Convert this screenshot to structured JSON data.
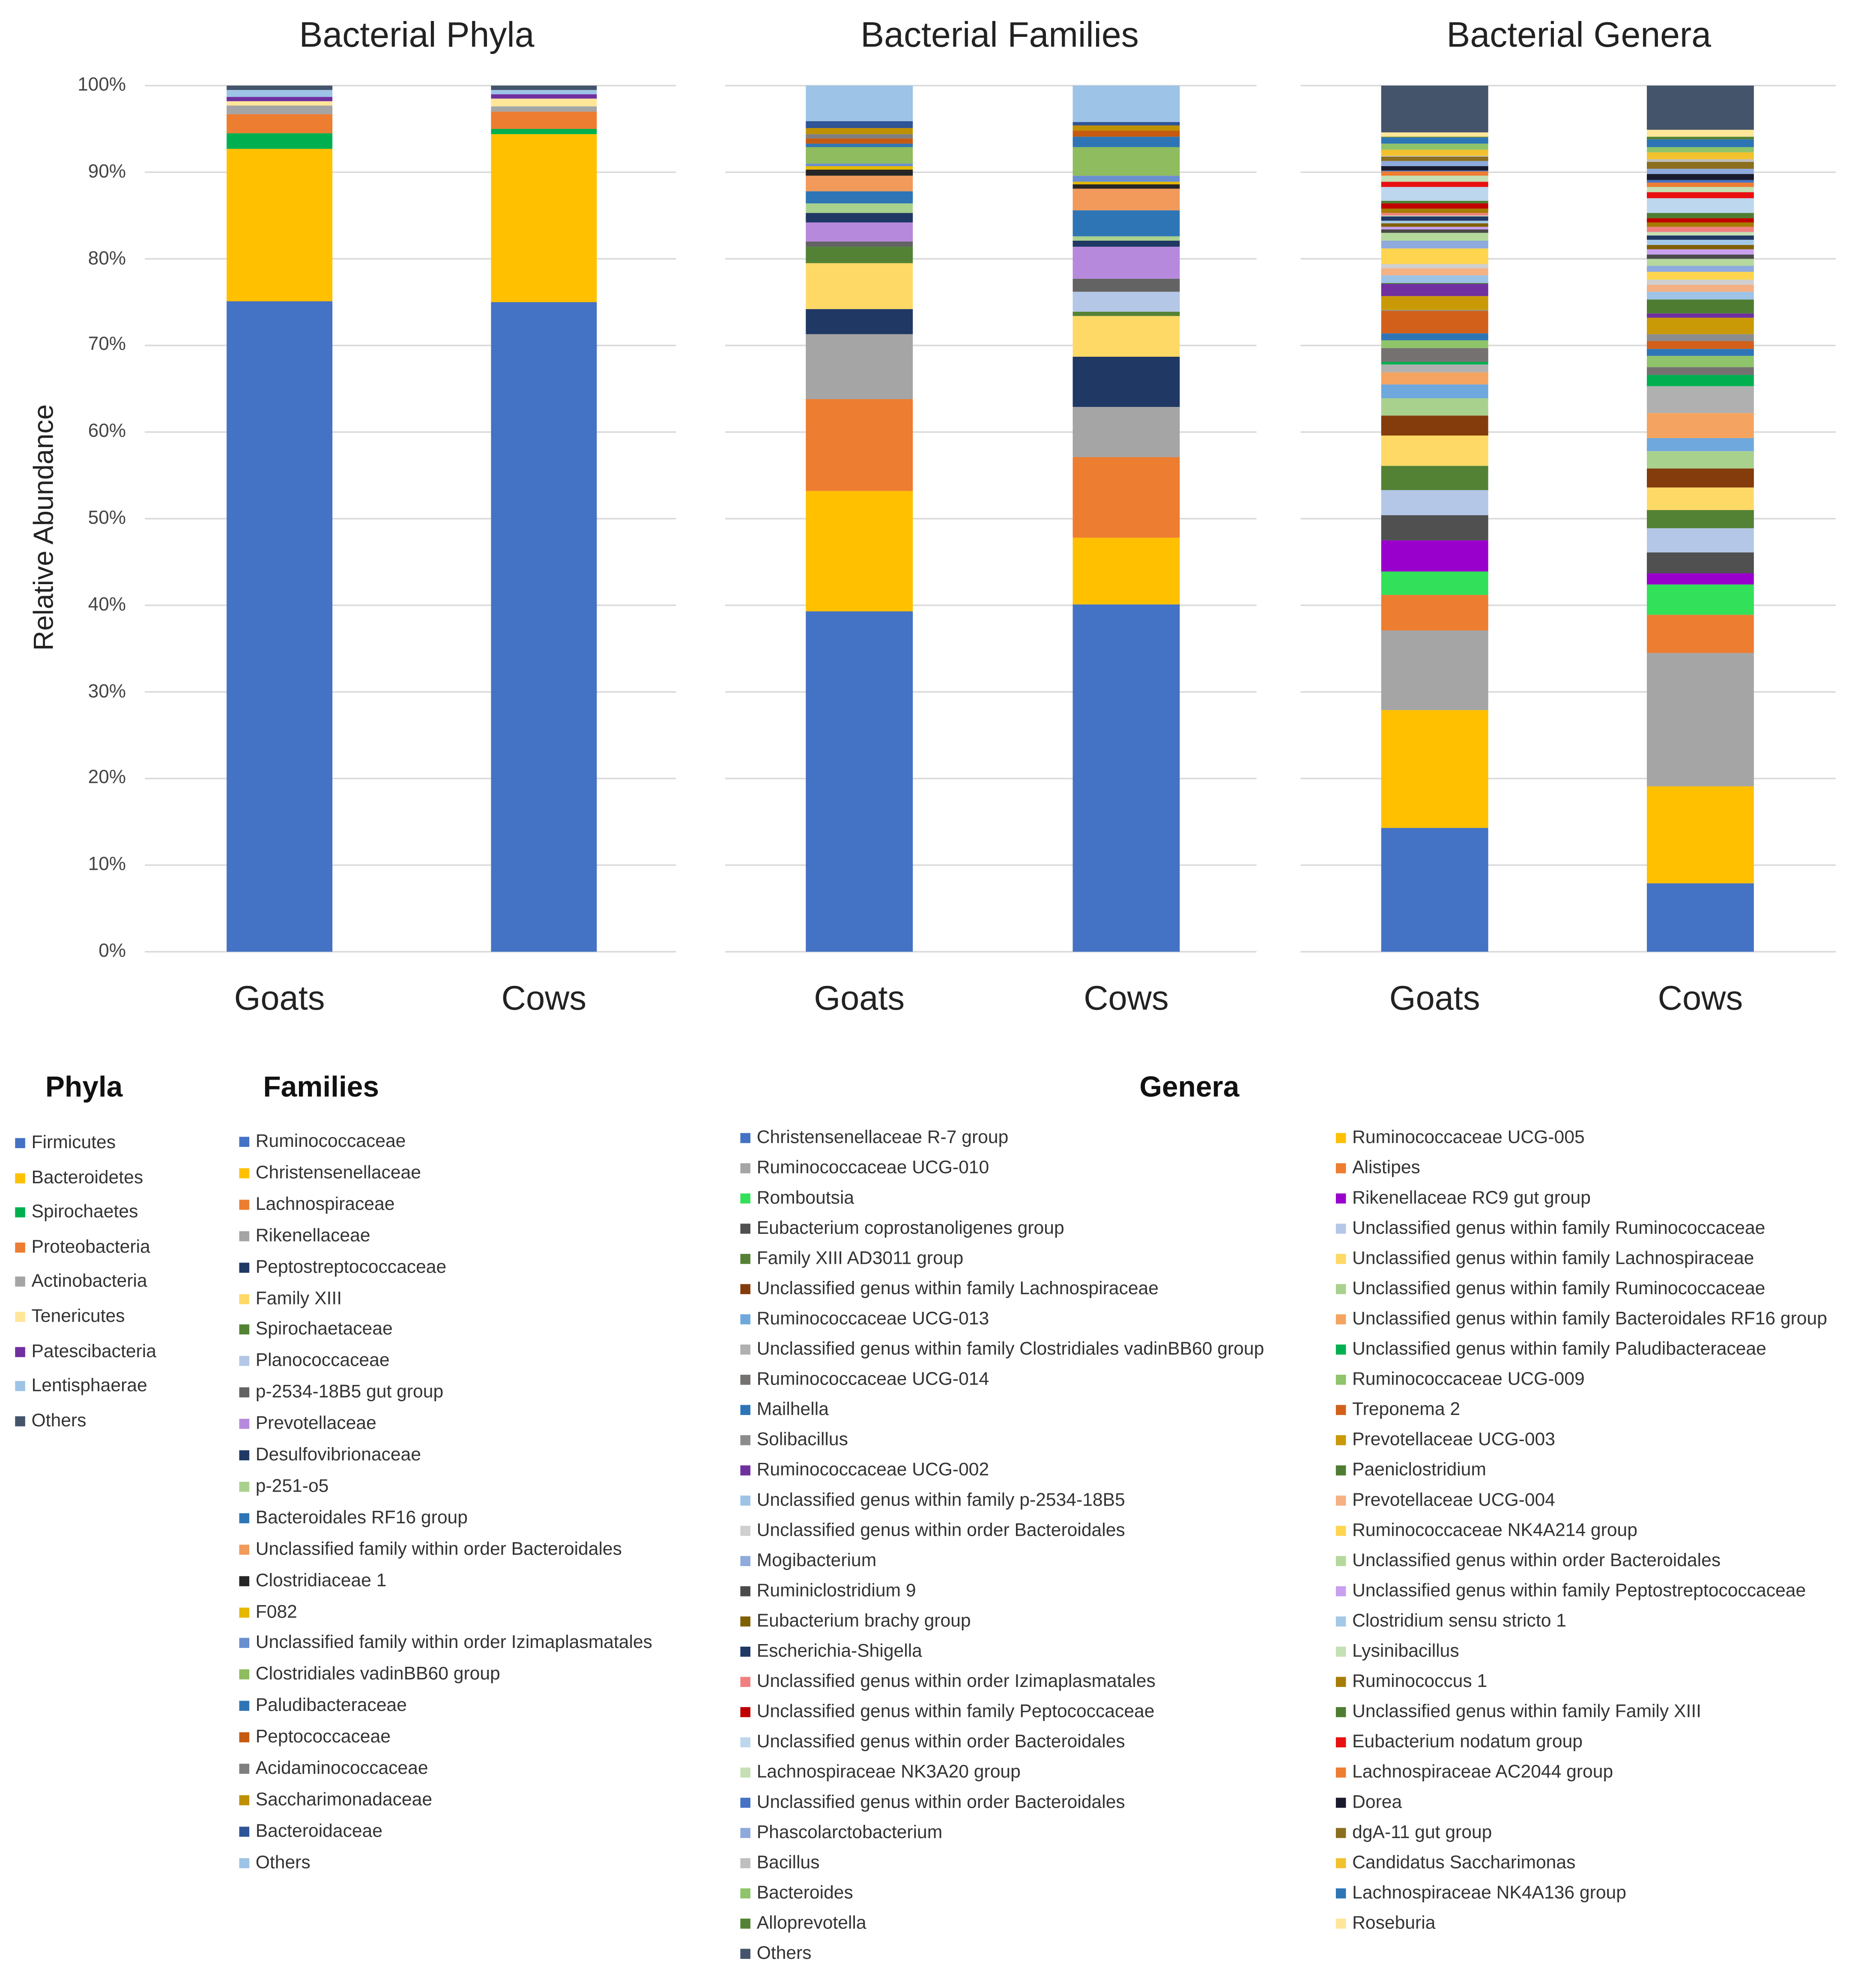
{
  "y_axis_label": "Relative Abundance",
  "legend_headings": {
    "phyla": "Phyla",
    "families": "Families",
    "genera": "Genera"
  },
  "chart_data": [
    {
      "type": "bar",
      "stacked": true,
      "title": "Bacterial Phyla",
      "categories": [
        "Goats",
        "Cows"
      ],
      "ylabel": "Relative Abundance",
      "ylim": [
        0,
        100
      ],
      "yticks": [
        "0%",
        "10%",
        "20%",
        "30%",
        "40%",
        "50%",
        "60%",
        "70%",
        "80%",
        "90%",
        "100%"
      ],
      "grid": true,
      "legend_placement": "bottom",
      "series": [
        {
          "name": "Firmicutes",
          "color": "#4472C4",
          "values": [
            75.1,
            75.0
          ]
        },
        {
          "name": "Bacteroidetes",
          "color": "#FFC000",
          "values": [
            17.6,
            19.4
          ]
        },
        {
          "name": "Spirochaetes",
          "color": "#00B050",
          "values": [
            1.8,
            0.6
          ]
        },
        {
          "name": "Proteobacteria",
          "color": "#ED7D31",
          "values": [
            2.2,
            2.0
          ]
        },
        {
          "name": "Actinobacteria",
          "color": "#A5A5A5",
          "values": [
            1.0,
            0.6
          ]
        },
        {
          "name": "Tenericutes",
          "color": "#FFE699",
          "values": [
            0.5,
            0.9
          ]
        },
        {
          "name": "Patescibacteria",
          "color": "#7030A0",
          "values": [
            0.5,
            0.5
          ]
        },
        {
          "name": "Lentisphaerae",
          "color": "#9DC3E6",
          "values": [
            0.8,
            0.5
          ]
        },
        {
          "name": "Others",
          "color": "#44546A",
          "values": [
            0.5,
            0.5
          ]
        }
      ]
    },
    {
      "type": "bar",
      "stacked": true,
      "title": "Bacterial Families",
      "categories": [
        "Goats",
        "Cows"
      ],
      "ylim": [
        0,
        100
      ],
      "grid": true,
      "legend_placement": "bottom",
      "series": [
        {
          "name": "Ruminococcaceae",
          "color": "#4472C4",
          "values": [
            39.3,
            40.1
          ]
        },
        {
          "name": "Christensenellaceae",
          "color": "#FFC000",
          "values": [
            13.9,
            7.7
          ]
        },
        {
          "name": "Lachnospiraceae",
          "color": "#ED7D31",
          "values": [
            10.6,
            9.3
          ]
        },
        {
          "name": "Rikenellaceae",
          "color": "#A5A5A5",
          "values": [
            7.5,
            5.8
          ]
        },
        {
          "name": "Peptostreptococcaceae",
          "color": "#203864",
          "values": [
            2.9,
            5.8
          ]
        },
        {
          "name": "Family XIII",
          "color": "#FFD966",
          "values": [
            5.3,
            4.7
          ]
        },
        {
          "name": "Spirochaetaceae",
          "color": "#548235",
          "values": [
            1.9,
            0.5
          ]
        },
        {
          "name": "Planococcaceae",
          "color": "#B4C7E7",
          "values": [
            0.0,
            2.3
          ]
        },
        {
          "name": "p-2534-18B5 gut group",
          "color": "#636363",
          "values": [
            0.6,
            1.5
          ]
        },
        {
          "name": "Prevotellaceae",
          "color": "#B689DD",
          "values": [
            2.2,
            3.7
          ]
        },
        {
          "name": "Desulfovibrionaceae",
          "color": "#1F3864",
          "values": [
            1.1,
            0.7
          ]
        },
        {
          "name": "p-251-o5",
          "color": "#A9D18E",
          "values": [
            1.1,
            0.5
          ]
        },
        {
          "name": "Bacteroidales RF16 group",
          "color": "#2E75B6",
          "values": [
            1.4,
            3.0
          ]
        },
        {
          "name": "Unclassified family within order Bacteroidales",
          "color": "#F19A5B",
          "values": [
            1.8,
            2.5
          ]
        },
        {
          "name": "Clostridiaceae 1",
          "color": "#262626",
          "values": [
            0.7,
            0.5
          ]
        },
        {
          "name": "F082",
          "color": "#E6B800",
          "values": [
            0.4,
            0.3
          ]
        },
        {
          "name": "Unclassified family within order Izimaplasmatales",
          "color": "#6A8FCF",
          "values": [
            0.3,
            0.7
          ]
        },
        {
          "name": "Clostridiales vadinBB60 group",
          "color": "#8FBC5E",
          "values": [
            1.9,
            3.3
          ]
        },
        {
          "name": "Paludibacteraceae",
          "color": "#2F75B5",
          "values": [
            0.4,
            1.2
          ]
        },
        {
          "name": "Peptococcaceae",
          "color": "#C55A11",
          "values": [
            0.6,
            0.7
          ]
        },
        {
          "name": "Acidaminococcaceae",
          "color": "#7F7F7F",
          "values": [
            0.5,
            0.0
          ]
        },
        {
          "name": "Saccharimonadaceae",
          "color": "#BF9000",
          "values": [
            0.7,
            0.6
          ]
        },
        {
          "name": "Bacteroidaceae",
          "color": "#2F5597",
          "values": [
            0.8,
            0.4
          ]
        },
        {
          "name": "Others",
          "color": "#9DC3E6",
          "values": [
            4.1,
            4.2
          ]
        }
      ]
    },
    {
      "type": "bar",
      "stacked": true,
      "title": "Bacterial Genera",
      "categories": [
        "Goats",
        "Cows"
      ],
      "ylim": [
        0,
        100
      ],
      "grid": true,
      "legend_placement": "bottom",
      "series": [
        {
          "name": "Christensenellaceae R-7 group",
          "color": "#4472C4",
          "values": [
            14.3,
            7.9
          ]
        },
        {
          "name": "Ruminococcaceae UCG-005",
          "color": "#FFC000",
          "values": [
            13.6,
            11.2
          ]
        },
        {
          "name": "Ruminococcaceae UCG-010",
          "color": "#A5A5A5",
          "values": [
            9.2,
            15.4
          ]
        },
        {
          "name": "Alistipes",
          "color": "#ED7D31",
          "values": [
            4.1,
            4.4
          ]
        },
        {
          "name": "Romboutsia",
          "color": "#33E05A",
          "values": [
            2.7,
            3.5
          ]
        },
        {
          "name": "Rikenellaceae RC9 gut group",
          "color": "#9900CC",
          "values": [
            3.6,
            1.3
          ]
        },
        {
          "name": "Eubacterium coprostanoligenes group",
          "color": "#505050",
          "values": [
            2.9,
            2.4
          ]
        },
        {
          "name": "Unclassified genus within family Ruminococcaceae",
          "color": "#B4C7E7",
          "values": [
            2.9,
            2.8
          ]
        },
        {
          "name": "Family XIII AD3011 group",
          "color": "#548235",
          "values": [
            2.8,
            2.1
          ]
        },
        {
          "name": "Unclassified genus within family Lachnospiraceae",
          "color": "#FFD966",
          "values": [
            3.5,
            2.6
          ]
        },
        {
          "name": "Unclassified genus within family Lachnospiraceae",
          "color": "#843C0C",
          "values": [
            2.3,
            2.2
          ]
        },
        {
          "name": "Unclassified genus within family Ruminococcaceae",
          "color": "#A9D18E",
          "values": [
            2.0,
            2.0
          ]
        },
        {
          "name": "Ruminococcaceae UCG-013",
          "color": "#6FA8DC",
          "values": [
            1.6,
            1.5
          ]
        },
        {
          "name": "Unclassified genus within family Bacteroidales RF16 group",
          "color": "#F4A460",
          "values": [
            1.4,
            2.9
          ]
        },
        {
          "name": "Unclassified genus within family Clostridiales vadinBB60 group",
          "color": "#B0B0B0",
          "values": [
            0.9,
            3.1
          ]
        },
        {
          "name": "Unclassified genus within family Paludibacteraceae",
          "color": "#00B050",
          "values": [
            0.3,
            1.3
          ]
        },
        {
          "name": "Ruminococcaceae UCG-014",
          "color": "#767171",
          "values": [
            1.6,
            0.9
          ]
        },
        {
          "name": "Ruminococcaceae UCG-009",
          "color": "#8FC46A",
          "values": [
            0.9,
            1.3
          ]
        },
        {
          "name": "Mailhella",
          "color": "#2E75B6",
          "values": [
            0.8,
            0.8
          ]
        },
        {
          "name": "Treponema 2",
          "color": "#D2601A",
          "values": [
            2.6,
            0.9
          ]
        },
        {
          "name": "Solibacillus",
          "color": "#8C8C8C",
          "values": [
            0.1,
            0.8
          ]
        },
        {
          "name": "Prevotellaceae UCG-003",
          "color": "#C99A06",
          "values": [
            1.6,
            1.9
          ]
        },
        {
          "name": "Ruminococcaceae UCG-002",
          "color": "#7030A0",
          "values": [
            1.4,
            0.5
          ]
        },
        {
          "name": "Paeniclostridium",
          "color": "#4E7D32",
          "values": [
            0.1,
            1.6
          ]
        },
        {
          "name": "Unclassified genus within family p-2534-18B5",
          "color": "#9DC3E6",
          "values": [
            0.9,
            0.9
          ]
        },
        {
          "name": "Prevotellaceae UCG-004",
          "color": "#F4B183",
          "values": [
            0.8,
            0.8
          ]
        },
        {
          "name": "Unclassified genus within order Bacteroidales",
          "color": "#D0CECE",
          "values": [
            0.5,
            0.6
          ]
        },
        {
          "name": "Ruminococcaceae NK4A214 group",
          "color": "#FFD54F",
          "values": [
            1.8,
            0.9
          ]
        },
        {
          "name": "Mogibacterium",
          "color": "#8FAADC",
          "values": [
            0.9,
            0.7
          ]
        },
        {
          "name": "Unclassified genus within order  Bacteroidales",
          "color": "#B5D99C",
          "values": [
            0.9,
            0.8
          ]
        },
        {
          "name": "Ruminiclostridium 9",
          "color": "#4A4A4A",
          "values": [
            0.4,
            0.5
          ]
        },
        {
          "name": "Unclassified genus within family Peptostreptococcaceae",
          "color": "#C9A0F0",
          "values": [
            0.3,
            0.6
          ]
        },
        {
          "name": "Eubacterium brachy group",
          "color": "#7F6000",
          "values": [
            0.4,
            0.5
          ]
        },
        {
          "name": "Clostridium sensu stricto 1",
          "color": "#A4C8E8",
          "values": [
            0.3,
            0.6
          ]
        },
        {
          "name": "Escherichia-Shigella",
          "color": "#1F3864",
          "values": [
            0.5,
            0.5
          ]
        },
        {
          "name": "Lysinibacillus",
          "color": "#C5E0B4",
          "values": [
            0.1,
            0.4
          ]
        },
        {
          "name": "Unclassified genus within order Izimaplasmatales",
          "color": "#F08080",
          "values": [
            0.3,
            0.6
          ]
        },
        {
          "name": "Ruminococcus 1",
          "color": "#A67C00",
          "values": [
            0.5,
            0.5
          ]
        },
        {
          "name": "Unclassified genus within family Peptococcaceae",
          "color": "#C00000",
          "values": [
            0.6,
            0.5
          ]
        },
        {
          "name": "Unclassified genus within family Family XIII",
          "color": "#4E7D32",
          "values": [
            0.3,
            0.6
          ]
        },
        {
          "name": "Unclassified genus within order Bacteroidales",
          "color": "#BDD7EE",
          "values": [
            1.6,
            1.7
          ]
        },
        {
          "name": "Eubacterium nodatum group",
          "color": "#E81010",
          "values": [
            0.6,
            0.7
          ]
        },
        {
          "name": "Lachnospiraceae NK3A20 group",
          "color": "#C5E0B4",
          "values": [
            0.7,
            0.6
          ]
        },
        {
          "name": "Lachnospiraceae AC2044 group",
          "color": "#ED7D31",
          "values": [
            0.5,
            0.5
          ]
        },
        {
          "name": "Unclassified genus within order Bacteroidales",
          "color": "#4472C4",
          "values": [
            0.1,
            0.3
          ]
        },
        {
          "name": "Dorea",
          "color": "#1A1A2E",
          "values": [
            0.5,
            0.7
          ]
        },
        {
          "name": "Phascolarctobacterium",
          "color": "#8EA9DB",
          "values": [
            0.6,
            0.6
          ]
        },
        {
          "name": "dgA-11 gut group",
          "color": "#8B6F1E",
          "values": [
            0.5,
            0.8
          ]
        },
        {
          "name": "Bacillus",
          "color": "#BFBFBF",
          "values": [
            0.1,
            0.3
          ]
        },
        {
          "name": "Candidatus Saccharimonas",
          "color": "#F2C12E",
          "values": [
            0.7,
            0.8
          ]
        },
        {
          "name": "Bacteroides",
          "color": "#8FC46A",
          "values": [
            0.7,
            0.6
          ]
        },
        {
          "name": "Lachnospiraceae NK4A136 group",
          "color": "#2E75B6",
          "values": [
            0.7,
            0.9
          ]
        },
        {
          "name": "Alloprevotella",
          "color": "#548235",
          "values": [
            0.1,
            0.3
          ]
        },
        {
          "name": "Roseburia",
          "color": "#FFE699",
          "values": [
            0.5,
            0.8
          ]
        },
        {
          "name": "Others",
          "color": "#44546A",
          "values": [
            5.4,
            5.1
          ]
        }
      ]
    }
  ]
}
